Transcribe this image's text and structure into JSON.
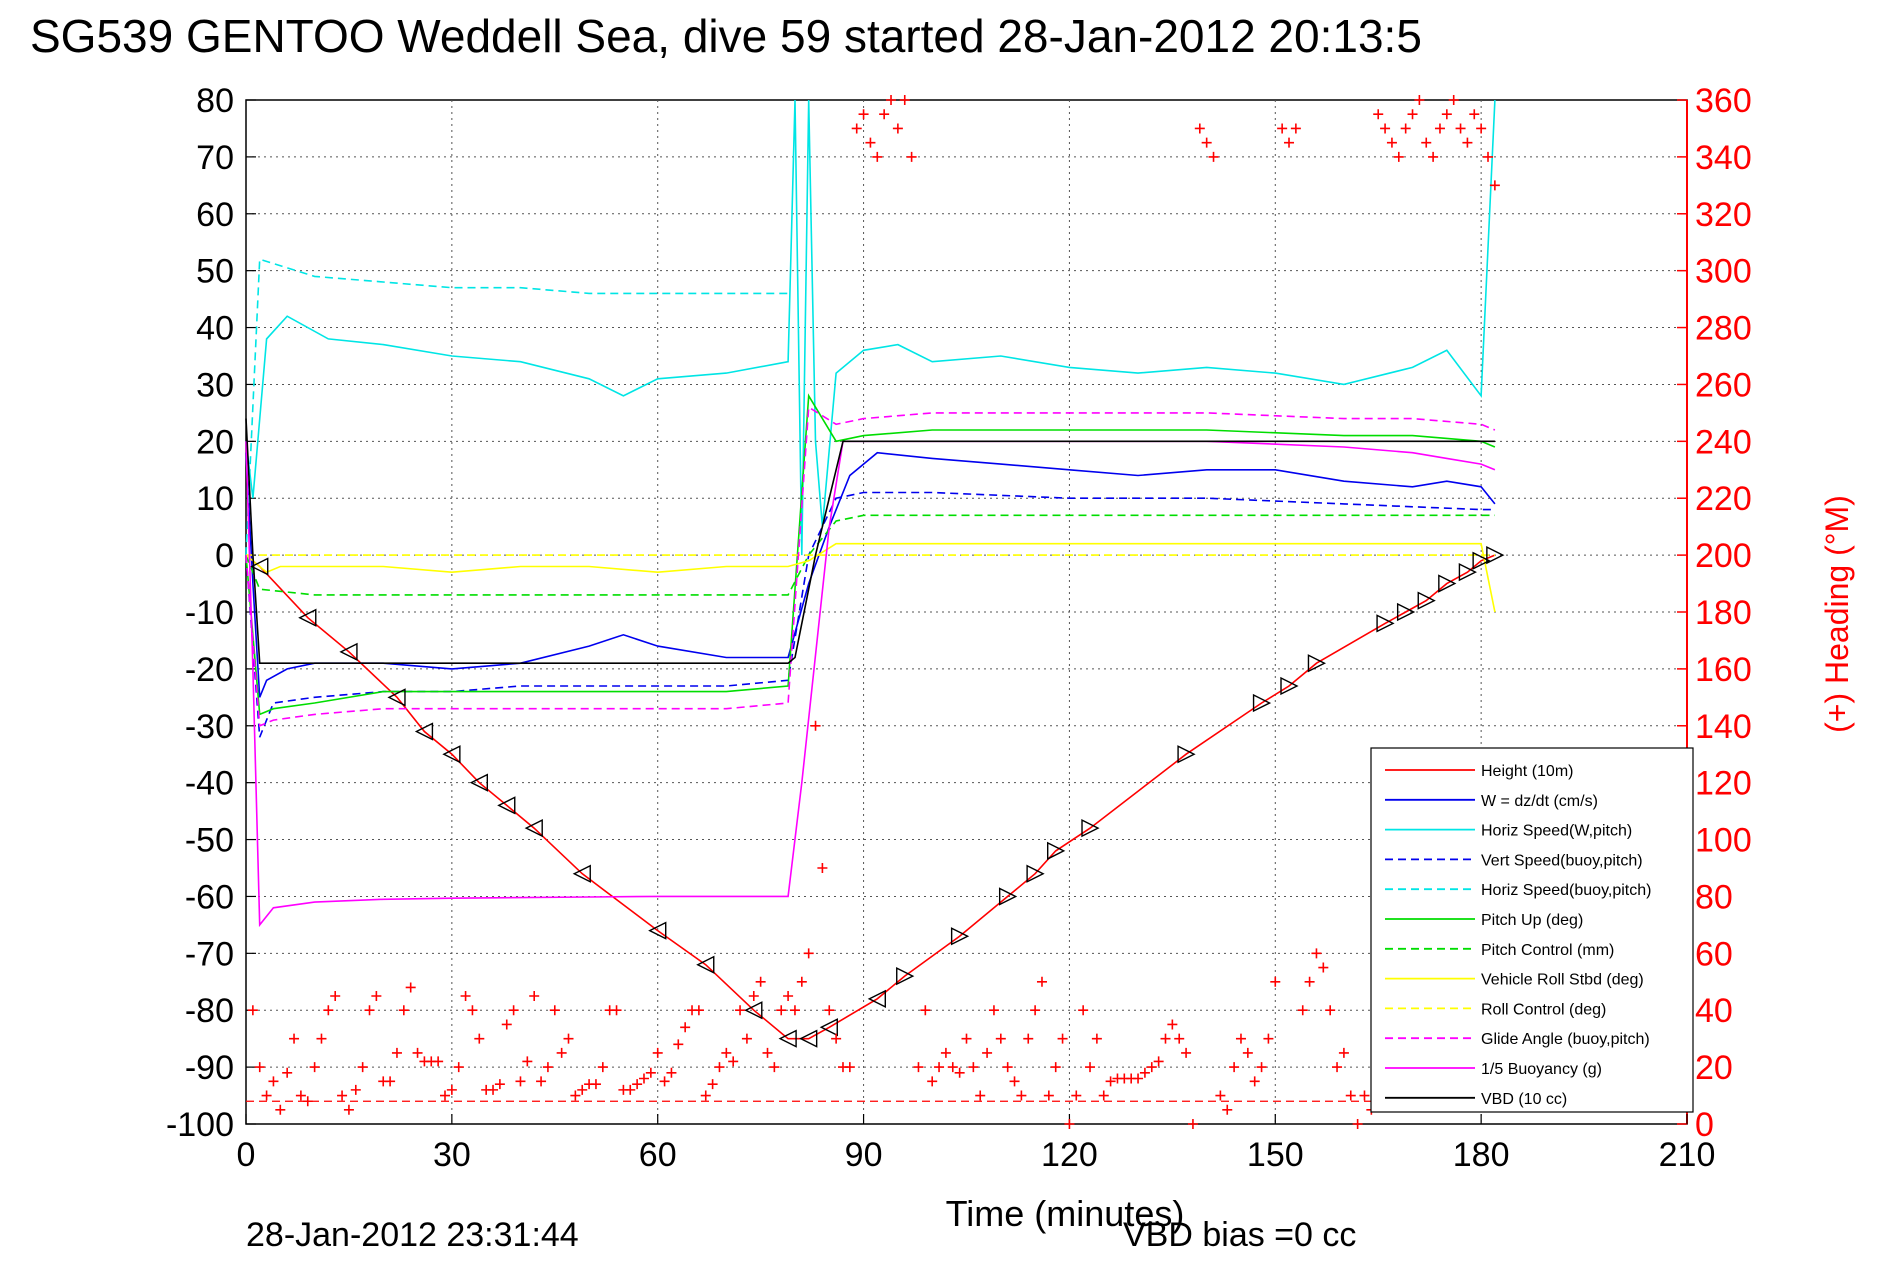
{
  "chart_data": {
    "type": "line",
    "title": "SG539 GENTOO Weddell Sea, dive 59 started 28-Jan-2012 20:13:5",
    "xlabel": "Time (minutes)",
    "ylabel_right": "(+) Heading (°M)",
    "footer_left": "28-Jan-2012 23:31:44",
    "footer_right": "VBD bias =0 cc",
    "xlim": [
      0,
      210
    ],
    "ylim": [
      -100,
      80
    ],
    "ylim_right": [
      0,
      360
    ],
    "x_ticks": [
      0,
      30,
      60,
      90,
      120,
      150,
      180,
      210
    ],
    "y_ticks": [
      80,
      70,
      60,
      50,
      40,
      30,
      20,
      10,
      0,
      -10,
      -20,
      -30,
      -40,
      -50,
      -60,
      -70,
      -80,
      -90,
      -100
    ],
    "y_right_ticks": [
      360,
      340,
      320,
      300,
      280,
      260,
      240,
      220,
      200,
      180,
      160,
      140,
      120,
      100,
      80,
      60,
      40,
      20,
      0
    ],
    "grid": true,
    "legend_position": "bottom-right",
    "colors": {
      "red": "#ff0000",
      "blue": "#0000ee",
      "cyan": "#00e5e5",
      "green": "#00dd00",
      "yellow": "#ffff00",
      "magenta": "#ff00ff",
      "black": "#000000"
    },
    "series": [
      {
        "name": "Height (10m)",
        "color": "#ff0000",
        "style": "solid",
        "x": [
          0,
          2,
          9,
          15,
          22,
          26,
          30,
          34,
          38,
          42,
          49,
          60,
          67,
          74,
          79,
          82,
          85,
          92,
          96,
          104,
          111,
          115,
          118,
          123,
          137,
          148,
          152,
          156,
          166,
          169,
          172,
          175,
          178,
          180,
          182
        ],
        "y": [
          0,
          -2,
          -11,
          -17,
          -25,
          -31,
          -35,
          -40,
          -44,
          -48,
          -56,
          -66,
          -72,
          -80,
          -85,
          -85,
          -83,
          -78,
          -74,
          -67,
          -60,
          -56,
          -52,
          -48,
          -35,
          -26,
          -23,
          -19,
          -12,
          -10,
          -8,
          -5,
          -3,
          -1,
          0
        ]
      },
      {
        "name": "W = dz/dt (cm/s)",
        "color": "#0000ee",
        "style": "solid",
        "x": [
          0,
          1,
          2,
          3,
          6,
          10,
          20,
          30,
          40,
          50,
          55,
          60,
          70,
          79,
          82,
          85,
          88,
          92,
          100,
          110,
          120,
          130,
          140,
          150,
          160,
          170,
          175,
          180,
          182
        ],
        "y": [
          18,
          -5,
          -25,
          -22,
          -20,
          -19,
          -19,
          -20,
          -19,
          -16,
          -14,
          -16,
          -18,
          -18,
          -5,
          5,
          14,
          18,
          17,
          16,
          15,
          14,
          15,
          15,
          13,
          12,
          13,
          12,
          9
        ]
      },
      {
        "name": "Horiz Speed(W,pitch)",
        "color": "#00e5e5",
        "style": "solid",
        "x": [
          0,
          1,
          3,
          6,
          12,
          20,
          30,
          40,
          50,
          55,
          60,
          70,
          79,
          80,
          81,
          82,
          83,
          84,
          86,
          90,
          95,
          100,
          110,
          120,
          130,
          140,
          150,
          160,
          170,
          175,
          180,
          182
        ],
        "y": [
          20,
          10,
          38,
          42,
          38,
          37,
          35,
          34,
          31,
          28,
          31,
          32,
          34,
          80,
          0,
          80,
          20,
          5,
          32,
          36,
          37,
          34,
          35,
          33,
          32,
          33,
          32,
          30,
          33,
          36,
          28,
          80
        ]
      },
      {
        "name": "Vert Speed(buoy,pitch)",
        "color": "#0000ee",
        "style": "dashed",
        "x": [
          0,
          2,
          4,
          10,
          20,
          30,
          40,
          50,
          60,
          70,
          79,
          82,
          86,
          90,
          100,
          120,
          140,
          160,
          180,
          182
        ],
        "y": [
          0,
          -32,
          -26,
          -25,
          -24,
          -24,
          -23,
          -23,
          -23,
          -23,
          -22,
          0,
          10,
          11,
          11,
          10,
          10,
          9,
          8,
          8
        ]
      },
      {
        "name": "Horiz Speed(buoy,pitch)",
        "color": "#00e5e5",
        "style": "dashed",
        "x": [
          0,
          2,
          10,
          20,
          30,
          40,
          50,
          60,
          70,
          79
        ],
        "y": [
          0,
          52,
          49,
          48,
          47,
          47,
          46,
          46,
          46,
          46
        ]
      },
      {
        "name": "Pitch Up (deg)",
        "color": "#00dd00",
        "style": "solid",
        "x": [
          0,
          2,
          4,
          10,
          20,
          30,
          40,
          50,
          60,
          70,
          79,
          82,
          86,
          90,
          100,
          120,
          140,
          160,
          170,
          180,
          182
        ],
        "y": [
          0,
          -28,
          -27,
          -26,
          -24,
          -24,
          -24,
          -24,
          -24,
          -24,
          -23,
          28,
          20,
          21,
          22,
          22,
          22,
          21,
          21,
          20,
          19
        ]
      },
      {
        "name": "Pitch Control (mm)",
        "color": "#00dd00",
        "style": "dashed",
        "x": [
          0,
          2,
          10,
          30,
          50,
          70,
          79,
          82,
          86,
          90,
          110,
          130,
          150,
          170,
          182
        ],
        "y": [
          0,
          -6,
          -7,
          -7,
          -7,
          -7,
          -7,
          0,
          6,
          7,
          7,
          7,
          7,
          7,
          7
        ]
      },
      {
        "name": "Vehicle Roll Stbd (deg)",
        "color": "#ffff00",
        "style": "solid",
        "x": [
          0,
          3,
          5,
          10,
          20,
          30,
          40,
          50,
          60,
          70,
          79,
          82,
          86,
          90,
          100,
          120,
          140,
          160,
          180,
          182
        ],
        "y": [
          0,
          -3,
          -2,
          -2,
          -2,
          -3,
          -2,
          -2,
          -3,
          -2,
          -2,
          -1,
          2,
          2,
          2,
          2,
          2,
          2,
          2,
          -10
        ]
      },
      {
        "name": "Roll Control (deg)",
        "color": "#ffff00",
        "style": "dashed",
        "x": [
          0,
          10,
          30,
          50,
          70,
          79,
          82,
          90,
          110,
          130,
          150,
          170,
          182
        ],
        "y": [
          0,
          0,
          0,
          0,
          0,
          0,
          0,
          0,
          0,
          0,
          0,
          0,
          0
        ]
      },
      {
        "name": "Glide Angle (buoy,pitch)",
        "color": "#ff00ff",
        "style": "dashed",
        "x": [
          0,
          2,
          4,
          10,
          20,
          30,
          40,
          50,
          60,
          70,
          79,
          82,
          86,
          90,
          100,
          120,
          140,
          160,
          170,
          180,
          182
        ],
        "y": [
          0,
          -30,
          -29,
          -28,
          -27,
          -27,
          -27,
          -27,
          -27,
          -27,
          -26,
          26,
          23,
          24,
          25,
          25,
          25,
          24,
          24,
          23,
          22
        ]
      },
      {
        "name": "1/5 Buoyancy (g)",
        "color": "#ff00ff",
        "style": "solid",
        "x": [
          0,
          1,
          2,
          4,
          10,
          20,
          30,
          40,
          50,
          60,
          70,
          79,
          81,
          85,
          87,
          90,
          100,
          120,
          140,
          160,
          170,
          175,
          180,
          182
        ],
        "y": [
          20,
          -20,
          -65,
          -62,
          -61,
          -60.5,
          -60.3,
          -60.2,
          -60.1,
          -60,
          -60,
          -60,
          -40,
          5,
          20,
          20,
          20,
          20,
          20,
          19,
          18,
          17,
          16,
          15
        ]
      },
      {
        "name": "VBD (10 cc)",
        "color": "#000000",
        "style": "solid",
        "x": [
          0,
          1,
          2,
          79,
          80,
          83,
          87,
          182
        ],
        "y": [
          24,
          0,
          -19,
          -19,
          -18,
          0,
          20,
          20
        ]
      }
    ],
    "heading_series": {
      "name": "Heading (+)",
      "color": "#ff0000",
      "marker": "+",
      "x": [
        1,
        2,
        3,
        4,
        5,
        6,
        7,
        8,
        9,
        10,
        11,
        12,
        13,
        14,
        15,
        16,
        17,
        18,
        19,
        20,
        21,
        22,
        23,
        24,
        25,
        26,
        27,
        28,
        29,
        30,
        31,
        32,
        33,
        34,
        35,
        36,
        37,
        38,
        39,
        40,
        41,
        42,
        43,
        44,
        45,
        46,
        47,
        48,
        49,
        50,
        51,
        52,
        53,
        54,
        55,
        56,
        57,
        58,
        59,
        60,
        61,
        62,
        63,
        64,
        65,
        66,
        67,
        68,
        69,
        70,
        71,
        72,
        73,
        74,
        75,
        76,
        77,
        78,
        79,
        80,
        81,
        82,
        83,
        84,
        85,
        86,
        87,
        88,
        89,
        90,
        91,
        92,
        93,
        94,
        95,
        96,
        97,
        98,
        99,
        100,
        101,
        102,
        103,
        104,
        105,
        106,
        107,
        108,
        109,
        110,
        111,
        112,
        113,
        114,
        115,
        116,
        117,
        118,
        119,
        120,
        121,
        122,
        123,
        124,
        125,
        126,
        127,
        128,
        129,
        130,
        131,
        132,
        133,
        134,
        135,
        136,
        137,
        138,
        139,
        140,
        141,
        142,
        143,
        144,
        145,
        146,
        147,
        148,
        149,
        150,
        151,
        152,
        153,
        154,
        155,
        156,
        157,
        158,
        159,
        160,
        161,
        162,
        163,
        164,
        165,
        166,
        167,
        168,
        169,
        170,
        171,
        172,
        173,
        174,
        175,
        176,
        177,
        178,
        179,
        180,
        181,
        182
      ],
      "y": [
        40,
        20,
        10,
        15,
        5,
        18,
        30,
        10,
        8,
        20,
        30,
        40,
        45,
        10,
        5,
        12,
        20,
        40,
        45,
        15,
        15,
        25,
        40,
        48,
        25,
        22,
        22,
        22,
        10,
        12,
        20,
        45,
        40,
        30,
        12,
        12,
        14,
        35,
        40,
        15,
        22,
        45,
        15,
        20,
        40,
        25,
        30,
        10,
        12,
        14,
        14,
        20,
        40,
        40,
        12,
        12,
        14,
        16,
        18,
        25,
        15,
        18,
        28,
        34,
        40,
        40,
        10,
        14,
        20,
        25,
        22,
        40,
        30,
        45,
        50,
        25,
        20,
        40,
        45,
        40,
        50,
        60,
        140,
        90,
        40,
        30,
        20,
        20,
        350,
        355,
        345,
        340,
        355,
        360,
        350,
        362,
        340,
        20,
        40,
        15,
        20,
        25,
        20,
        18,
        30,
        20,
        10,
        25,
        40,
        30,
        20,
        15,
        10,
        30,
        40,
        50,
        10,
        20,
        30,
        0,
        10,
        40,
        20,
        30,
        10,
        15,
        16,
        16,
        16,
        16,
        18,
        20,
        22,
        30,
        35,
        30,
        25,
        0,
        350,
        345,
        340,
        10,
        5,
        20,
        30,
        25,
        15,
        20,
        30,
        50,
        350,
        345,
        350,
        40,
        50,
        60,
        55,
        40,
        20,
        25,
        10,
        0,
        10,
        5,
        355,
        350,
        345,
        340,
        350,
        355,
        360,
        345,
        340,
        350,
        355,
        360,
        350,
        345,
        355,
        350,
        340,
        330
      ]
    }
  }
}
